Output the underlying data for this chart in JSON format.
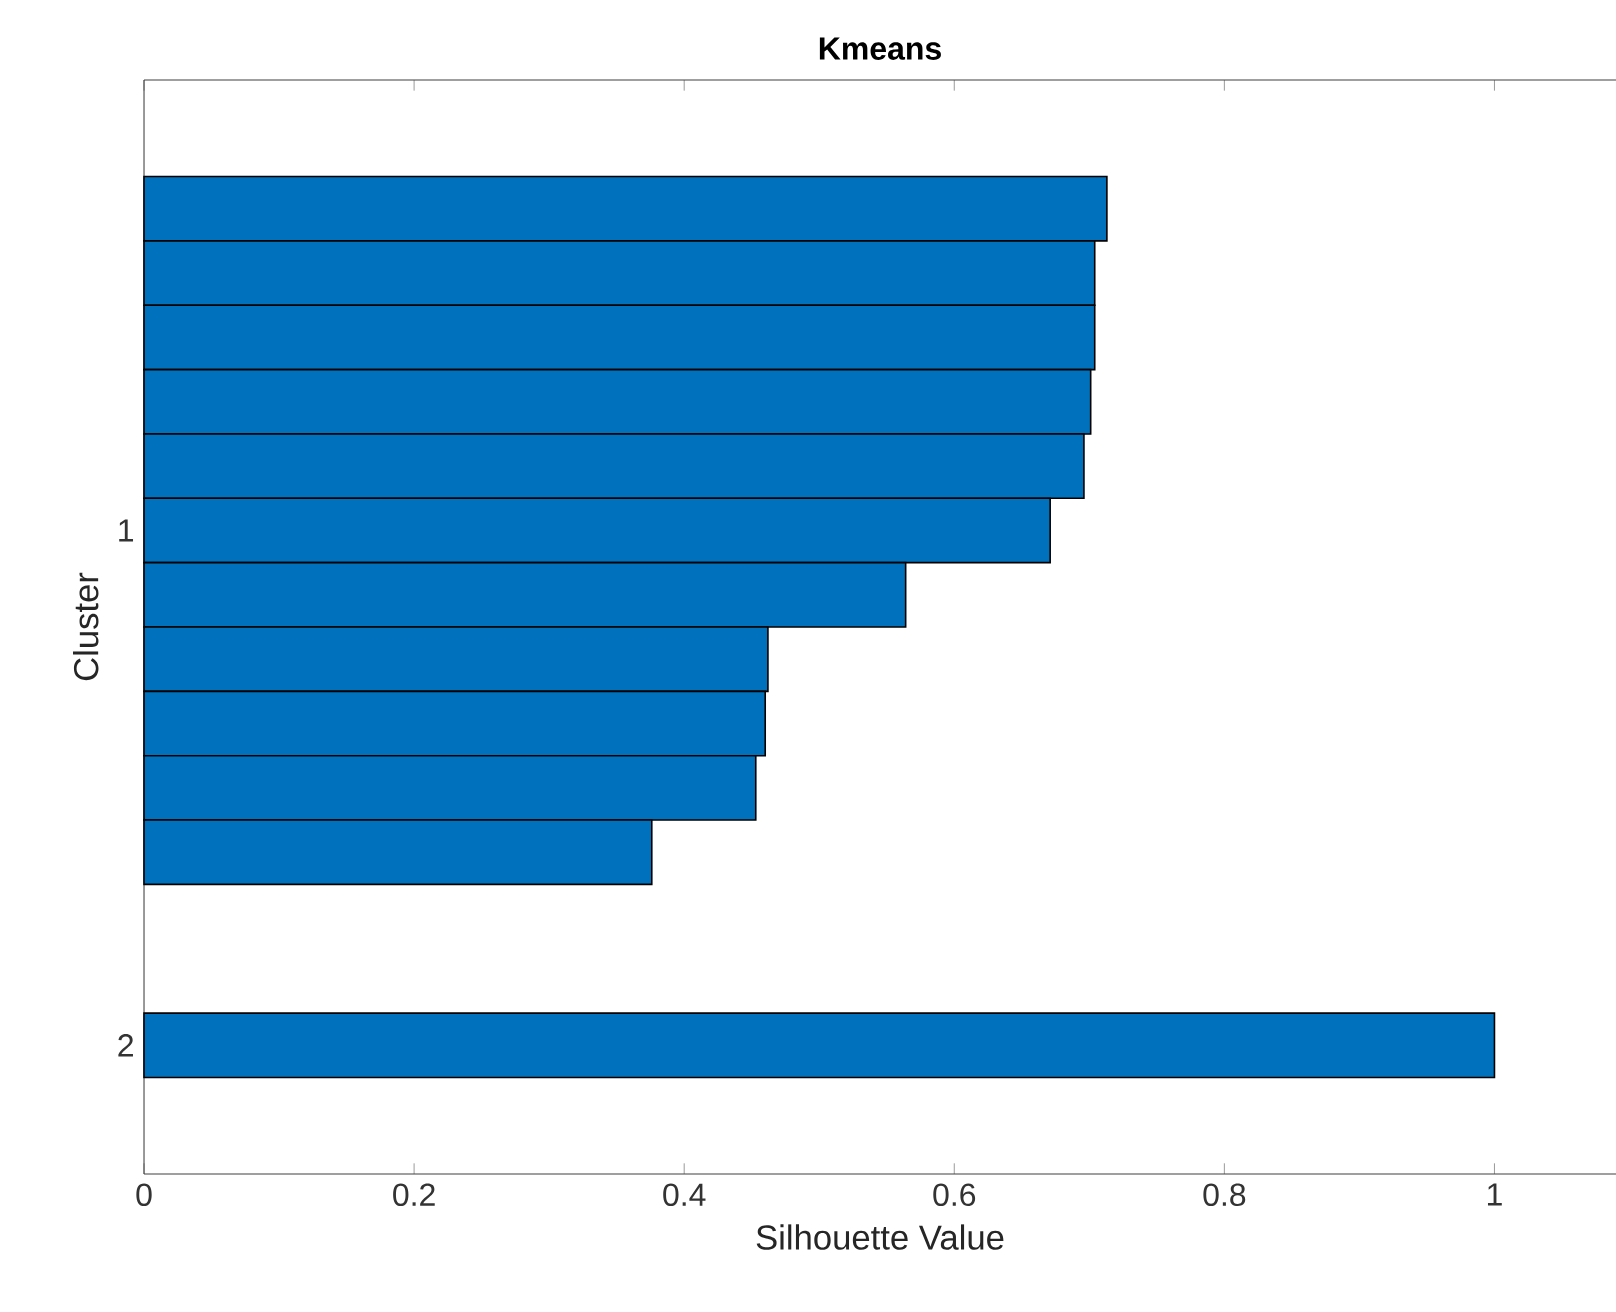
{
  "chart_data": {
    "type": "bar",
    "orientation": "horizontal",
    "title": "Kmeans",
    "xlabel": "Silhouette Value",
    "ylabel": "Cluster",
    "categories": [
      null,
      null,
      null,
      null,
      null,
      "1",
      null,
      null,
      null,
      null,
      null,
      null,
      null,
      "2"
    ],
    "values": [
      0.713,
      0.704,
      0.704,
      0.701,
      0.696,
      0.671,
      0.564,
      0.462,
      0.46,
      0.453,
      0.376,
      null,
      null,
      1.0
    ],
    "color": "#0072bd",
    "xlim": [
      0,
      1.09
    ],
    "xticks": [
      0,
      0.2,
      0.4,
      0.6,
      0.8,
      1
    ],
    "grid": false
  }
}
